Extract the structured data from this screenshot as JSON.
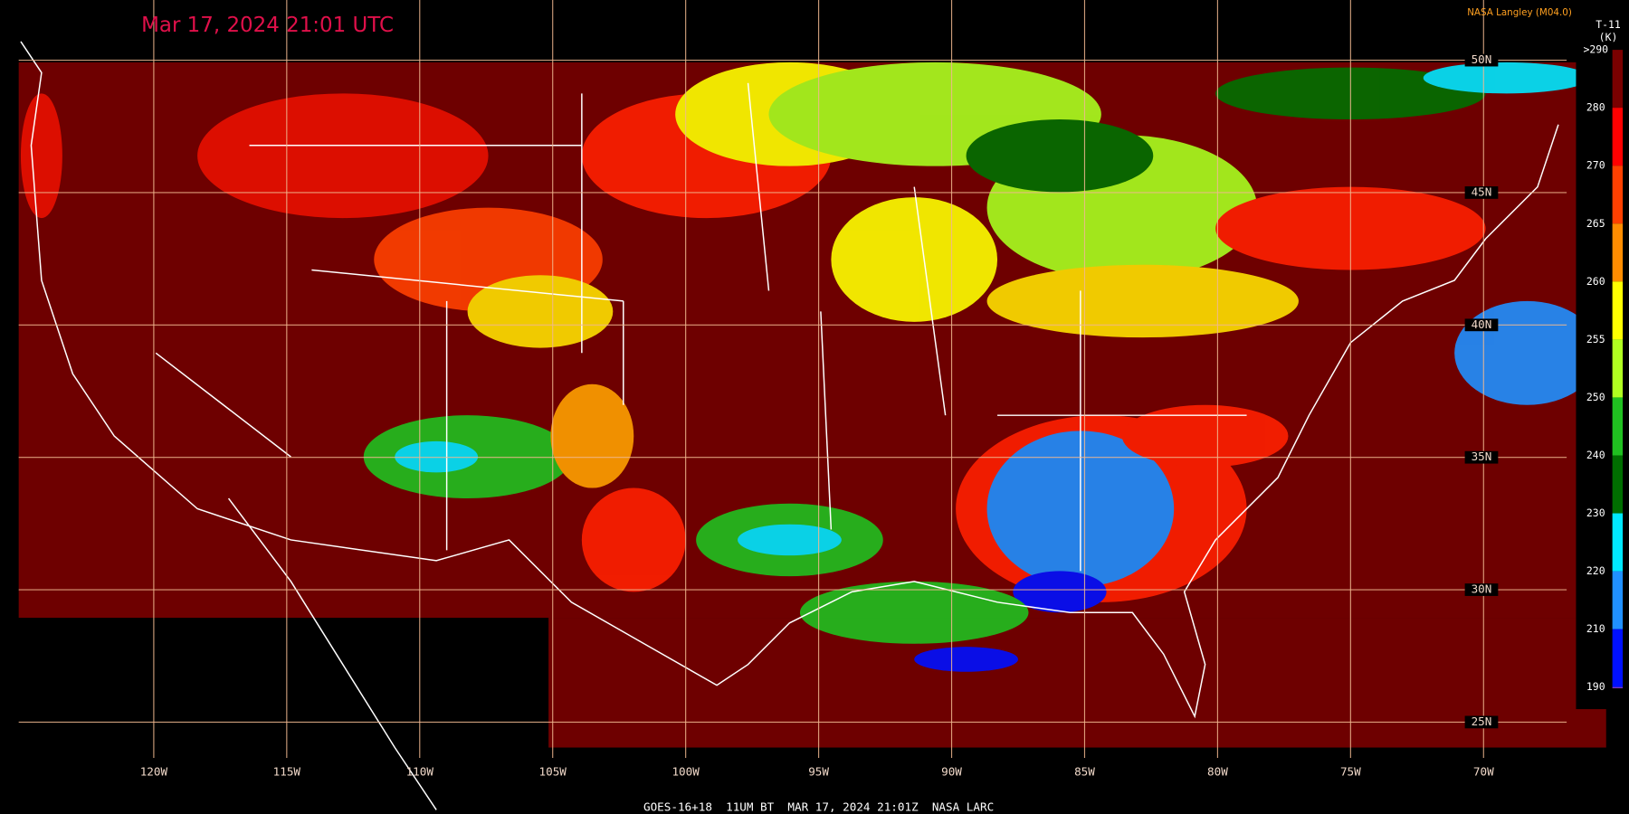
{
  "header": {
    "title": "Mar 17, 2024 21:01 UTC",
    "credit": "NASA Langley (M04.0)",
    "footer": "GOES-16+18  11UM BT  MAR 17, 2024 21:01Z  NASA LARC"
  },
  "map": {
    "lon_ticks": [
      {
        "value": -120,
        "label": "120W"
      },
      {
        "value": -115,
        "label": "115W"
      },
      {
        "value": -110,
        "label": "110W"
      },
      {
        "value": -105,
        "label": "105W"
      },
      {
        "value": -100,
        "label": "100W"
      },
      {
        "value": -95,
        "label": "95W"
      },
      {
        "value": -90,
        "label": "90W"
      },
      {
        "value": -85,
        "label": "85W"
      },
      {
        "value": -80,
        "label": "80W"
      },
      {
        "value": -75,
        "label": "75W"
      },
      {
        "value": -70,
        "label": "70W"
      }
    ],
    "lat_ticks": [
      {
        "value": 50,
        "label": "50N"
      },
      {
        "value": 45,
        "label": "45N"
      },
      {
        "value": 40,
        "label": "40N"
      },
      {
        "value": 35,
        "label": "35N"
      },
      {
        "value": 30,
        "label": "30N"
      },
      {
        "value": 25,
        "label": "25N"
      }
    ]
  },
  "colorbar": {
    "title": "T-11",
    "unit": "(K)",
    "ticks": [
      {
        "value": 290,
        "label": ">290"
      },
      280,
      270,
      265,
      260,
      255,
      250,
      240,
      230,
      220,
      210,
      190
    ],
    "colors": [
      "#7a0000",
      "#ff0000",
      "#ff4000",
      "#ff8c00",
      "#ffff00",
      "#b0ff20",
      "#20c020",
      "#006e00",
      "#00e8ff",
      "#2090ff",
      "#0010ff",
      "#9040e0"
    ]
  }
}
